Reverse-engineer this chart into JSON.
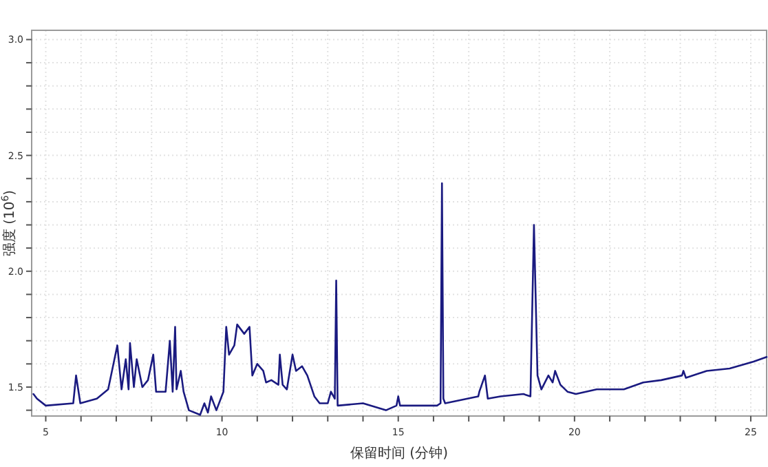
{
  "chart_data": {
    "type": "line",
    "xlabel": "保留时间 (分钟)",
    "ylabel": "强度 (10$^{6}$)",
    "xlim": [
      4.6,
      25.45
    ],
    "ylim": [
      1.375,
      3.04
    ],
    "xticks": [
      5,
      {
        "value": 6,
        "label": null
      },
      {
        "value": 7,
        "label": null
      },
      {
        "value": 8,
        "label": null
      },
      {
        "value": 9,
        "label": null
      },
      10,
      {
        "value": 11,
        "label": null
      },
      {
        "value": 12,
        "label": null
      },
      {
        "value": 13,
        "label": null
      },
      {
        "value": 14,
        "label": null
      },
      15,
      {
        "value": 16,
        "label": null
      },
      {
        "value": 17,
        "label": null
      },
      {
        "value": 18,
        "label": null
      },
      {
        "value": 19,
        "label": null
      },
      20,
      {
        "value": 21,
        "label": null
      },
      {
        "value": 22,
        "label": null
      },
      {
        "value": 23,
        "label": null
      },
      {
        "value": 24,
        "label": null
      },
      25
    ],
    "yticks": [
      {
        "value": 1.4,
        "label": null
      },
      {
        "value": 1.5,
        "label": "1.5"
      },
      {
        "value": 1.6,
        "label": null
      },
      {
        "value": 1.7,
        "label": null
      },
      {
        "value": 1.8,
        "label": null
      },
      {
        "value": 1.9,
        "label": null
      },
      {
        "value": 2,
        "label": "2.0"
      },
      {
        "value": 2.1,
        "label": null
      },
      {
        "value": 2.2,
        "label": null
      },
      {
        "value": 2.3,
        "label": null
      },
      {
        "value": 2.4,
        "label": null
      },
      {
        "value": 2.5,
        "label": "2.5"
      },
      {
        "value": 2.6,
        "label": null
      },
      {
        "value": 2.7,
        "label": null
      },
      {
        "value": 2.8,
        "label": null
      },
      {
        "value": 2.9,
        "label": null
      },
      {
        "value": 3,
        "label": "3.0"
      }
    ],
    "grid": true,
    "marker": "none",
    "line_style": "solid",
    "series": [
      {
        "color": "#1a1a80",
        "x": [
          4.65,
          4.75,
          5.0,
          5.78,
          5.86,
          5.92,
          5.98,
          6.45,
          6.77,
          7.03,
          7.15,
          7.27,
          7.35,
          7.39,
          7.5,
          7.58,
          7.74,
          7.9,
          8.05,
          8.13,
          8.4,
          8.52,
          8.6,
          8.67,
          8.71,
          8.83,
          8.91,
          9.06,
          9.38,
          9.5,
          9.6,
          9.69,
          9.84,
          10.04,
          10.12,
          10.2,
          10.35,
          10.43,
          10.63,
          10.78,
          10.86,
          11.0,
          11.17,
          11.25,
          11.4,
          11.6,
          11.64,
          11.72,
          11.84,
          12.0,
          12.1,
          12.27,
          12.42,
          12.62,
          12.77,
          13.0,
          13.09,
          13.2,
          13.24,
          13.28,
          14.0,
          14.65,
          14.95,
          15.0,
          15.05,
          15.43,
          16.1,
          16.2,
          16.24,
          16.28,
          16.33,
          17.27,
          17.3,
          17.46,
          17.54,
          17.9,
          18.55,
          18.75,
          18.85,
          18.95,
          19.06,
          19.26,
          19.38,
          19.45,
          19.6,
          19.8,
          20.04,
          20.63,
          21.4,
          21.95,
          22.46,
          23.05,
          23.09,
          23.16,
          23.75,
          24.4,
          25.08,
          25.45
        ],
        "values": [
          1.47,
          1.45,
          1.42,
          1.43,
          1.55,
          1.49,
          1.43,
          1.45,
          1.49,
          1.68,
          1.49,
          1.62,
          1.49,
          1.69,
          1.5,
          1.62,
          1.5,
          1.53,
          1.64,
          1.48,
          1.48,
          1.7,
          1.48,
          1.76,
          1.49,
          1.57,
          1.48,
          1.4,
          1.38,
          1.43,
          1.39,
          1.46,
          1.4,
          1.48,
          1.76,
          1.64,
          1.68,
          1.77,
          1.73,
          1.76,
          1.55,
          1.6,
          1.57,
          1.52,
          1.53,
          1.51,
          1.64,
          1.51,
          1.49,
          1.64,
          1.57,
          1.59,
          1.55,
          1.46,
          1.43,
          1.43,
          1.48,
          1.45,
          1.96,
          1.42,
          1.43,
          1.4,
          1.42,
          1.46,
          1.42,
          1.42,
          1.42,
          1.43,
          2.38,
          1.45,
          1.43,
          1.46,
          1.48,
          1.55,
          1.45,
          1.46,
          1.47,
          1.46,
          2.2,
          1.55,
          1.49,
          1.55,
          1.52,
          1.57,
          1.51,
          1.48,
          1.47,
          1.49,
          1.49,
          1.52,
          1.53,
          1.55,
          1.57,
          1.54,
          1.57,
          1.58,
          1.61,
          1.63
        ]
      }
    ]
  }
}
